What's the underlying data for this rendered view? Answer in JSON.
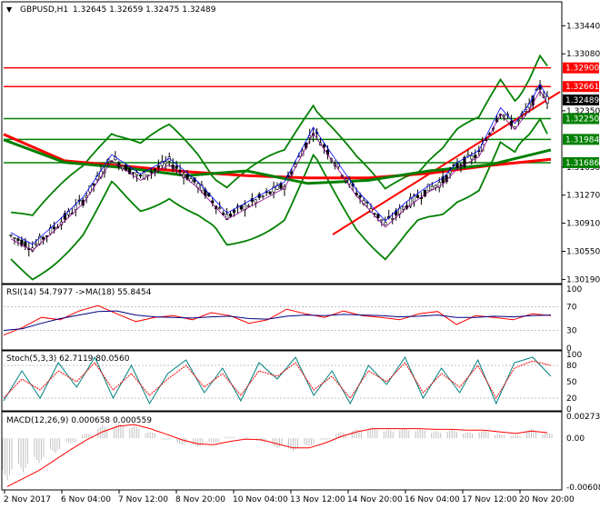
{
  "window": {
    "symbol_label": "GBPUSD,H1",
    "ohlc_label": "1.32645 1.32659 1.32475 1.32489"
  },
  "chart_data": [
    {
      "type": "line",
      "pane": "price",
      "title": "GBPUSD,H1  1.32645 1.32659 1.32475 1.32489",
      "ylim": [
        1.3016,
        1.3356
      ],
      "y_ticks": [
        "1.33440",
        "1.33080",
        "1.32350",
        "1.31630",
        "1.31270",
        "1.30910",
        "1.30550",
        "1.30190"
      ],
      "x_labels": [
        "2 Nov 2017",
        "6 Nov 04:00",
        "7 Nov 12:00",
        "8 Nov 20:00",
        "10 Nov 04:00",
        "13 Nov 12:00",
        "14 Nov 20:00",
        "16 Nov 04:00",
        "17 Nov 12:00",
        "20 Nov 20:00"
      ],
      "last_price": {
        "value": 1.32489,
        "label": "1.32489",
        "color": "#000000"
      },
      "levels": [
        {
          "value": 1.329,
          "label": "1.32900",
          "color": "#ff0000",
          "style": "resistance"
        },
        {
          "value": 1.32661,
          "label": "1.32661",
          "color": "#ff0000",
          "style": "resistance"
        },
        {
          "value": 1.3225,
          "label": "1.32250",
          "color": "#008000",
          "style": "support"
        },
        {
          "value": 1.31984,
          "label": "1.31984",
          "color": "#008000",
          "style": "support"
        },
        {
          "value": 1.31686,
          "label": "1.31686",
          "color": "#008000",
          "style": "support"
        }
      ],
      "series": [
        {
          "color": "#ff0000",
          "x": [
            "2 Nov 2017",
            "6 Nov 04:00",
            "7 Nov 12:00",
            "8 Nov 20:00",
            "10 Nov 04:00",
            "13 Nov 12:00",
            "14 Nov 20:00",
            "16 Nov 04:00",
            "17 Nov 12:00",
            "20 Nov 20:00"
          ],
          "values": [
            1.3205,
            1.3171,
            1.3164,
            1.3157,
            1.3152,
            1.3149,
            1.3149,
            1.3155,
            1.3165,
            1.3173
          ]
        },
        {
          "color": "#008000",
          "x": [
            "2 Nov 2017",
            "6 Nov 04:00",
            "7 Nov 12:00",
            "8 Nov 20:00",
            "10 Nov 04:00",
            "13 Nov 12:00",
            "14 Nov 20:00",
            "16 Nov 04:00",
            "17 Nov 12:00",
            "20 Nov 20:00"
          ],
          "values": [
            1.3198,
            1.3169,
            1.3162,
            1.3152,
            1.3158,
            1.3142,
            1.3146,
            1.3158,
            1.3166,
            1.3185
          ]
        }
      ],
      "grid": false
    },
    {
      "type": "line",
      "pane": "RSI",
      "title": "RSI(14) 54.7977  ->MA(18) 55.8454",
      "ylim": [
        0,
        100
      ],
      "y_ticks": [
        "100",
        "70",
        "30",
        "0"
      ],
      "series": [
        {
          "color": "#ff0000",
          "values": [
            22,
            35,
            52,
            48,
            63,
            72,
            58,
            45,
            52,
            55,
            48,
            60,
            55,
            42,
            48,
            66,
            58,
            52,
            63,
            55,
            52,
            48,
            58,
            62,
            40,
            55,
            52,
            48,
            58,
            55
          ]
        },
        {
          "color": "#000080",
          "values": [
            30,
            33,
            42,
            50,
            56,
            62,
            63,
            56,
            53,
            52,
            51,
            53,
            54,
            50,
            49,
            54,
            56,
            55,
            57,
            56,
            55,
            53,
            54,
            56,
            52,
            52,
            54,
            53,
            55,
            56
          ]
        }
      ]
    },
    {
      "type": "line",
      "pane": "Stochastic",
      "title": "Stoch(5,3,3) 62.7119 80.0560",
      "ylim": [
        0,
        100
      ],
      "y_ticks": [
        "100",
        "80",
        "50",
        "20",
        "0"
      ],
      "series": [
        {
          "color": "#008080",
          "values": [
            15,
            70,
            20,
            85,
            40,
            95,
            20,
            80,
            10,
            65,
            90,
            30,
            75,
            15,
            85,
            55,
            95,
            25,
            70,
            10,
            80,
            45,
            95,
            20,
            75,
            30,
            90,
            10,
            85,
            95,
            60
          ]
        },
        {
          "color": "#ff0000",
          "values": [
            20,
            55,
            35,
            70,
            50,
            85,
            35,
            65,
            25,
            55,
            80,
            40,
            65,
            25,
            70,
            60,
            85,
            35,
            60,
            20,
            70,
            50,
            85,
            30,
            65,
            40,
            80,
            20,
            75,
            88,
            80
          ]
        }
      ]
    },
    {
      "type": "bar",
      "pane": "MACD",
      "title": "MACD(12,26,9) 0.000658 0.000559",
      "ylim": [
        -0.006081,
        0.002731
      ],
      "y_ticks": [
        "0.002731",
        "0.00",
        "-0.006081"
      ],
      "series": [
        {
          "color": "#c0c0c0",
          "values": [
            -0.0052,
            -0.0042,
            -0.0031,
            -0.0018,
            -0.0006,
            0.0006,
            0.0016,
            0.002,
            0.0016,
            0.0008,
            -0.0002,
            -0.0008,
            -0.0011,
            -0.0006,
            0.0002,
            0.0001,
            -0.0004,
            -0.0012,
            -0.0016,
            -0.001,
            -0.0002,
            0.0008,
            0.0012,
            0.0014,
            0.0011,
            0.0013,
            0.0012,
            0.0009,
            0.0011,
            0.0008,
            0.001,
            0.0005,
            0.0004,
            0.0012,
            0.0007
          ]
        },
        {
          "color": "#ff0000",
          "values": [
            -0.006,
            -0.005,
            -0.004,
            -0.0027,
            -0.0014,
            -0.0002,
            0.0008,
            0.0015,
            0.0017,
            0.0012,
            0.0005,
            -0.0002,
            -0.0007,
            -0.0008,
            -0.0004,
            -0.0001,
            -0.0002,
            -0.0007,
            -0.0012,
            -0.0012,
            -0.0006,
            0.0002,
            0.0008,
            0.0012,
            0.0012,
            0.0012,
            0.0012,
            0.0011,
            0.0011,
            0.001,
            0.001,
            0.0008,
            0.0006,
            0.0009,
            0.0007
          ]
        }
      ]
    }
  ]
}
